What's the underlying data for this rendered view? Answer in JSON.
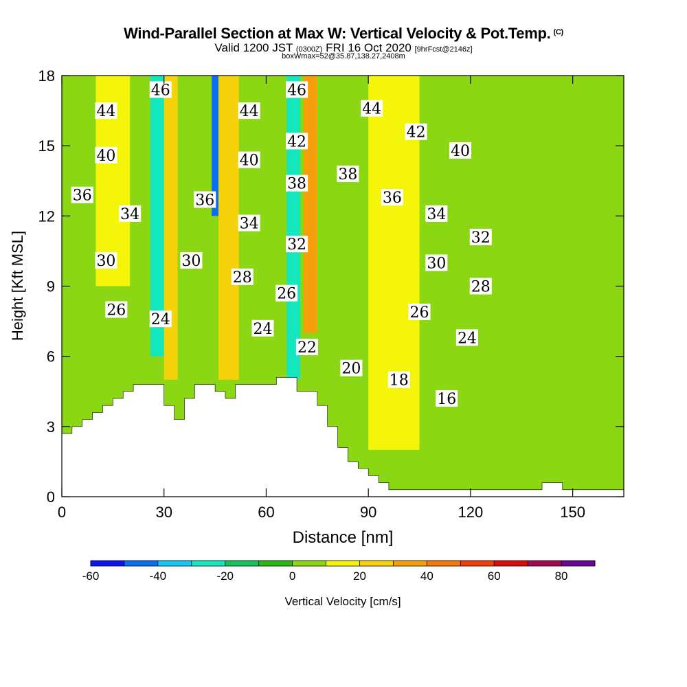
{
  "title": {
    "main": "Wind-Parallel Section at Max W: Vertical Velocity & Pot.Temp.",
    "copyright": "(C)",
    "valid_prefix": "Valid 1200 JST",
    "valid_utc": "(0300Z)",
    "valid_date": "FRI 16 Oct 2020",
    "forecast": "[9hrFcst@2146z]",
    "boxinfo": "boxWmax=52@35.87,138.27,2408m"
  },
  "chart_data": {
    "type": "heatmap",
    "xlabel": "Distance [nm]",
    "ylabel": "Height [Kft MSL]",
    "xlim": [
      0,
      165
    ],
    "ylim": [
      0,
      18
    ],
    "xticks": [
      0,
      30,
      60,
      90,
      120,
      150
    ],
    "yticks": [
      0,
      3,
      6,
      9,
      12,
      15,
      18
    ],
    "colorbar": {
      "label": "Vertical Velocity [cm/s]",
      "ticks": [
        -60,
        -40,
        -20,
        0,
        20,
        40,
        60,
        80
      ],
      "bins": [
        -60,
        -50,
        -40,
        -30,
        -20,
        -10,
        0,
        10,
        20,
        30,
        40,
        50,
        60,
        70,
        80,
        90
      ],
      "colors": [
        "#0a14f5",
        "#0a6ef0",
        "#14c8f5",
        "#14e6be",
        "#14c35a",
        "#2cb614",
        "#8cd714",
        "#f5f50a",
        "#f5d20a",
        "#f5a00a",
        "#f5780a",
        "#f03c0a",
        "#dc0a0a",
        "#a00a50",
        "#640a96"
      ]
    },
    "velocity_regions": [
      {
        "x": [
          10,
          20
        ],
        "y": [
          9,
          18
        ],
        "w_cms": 15
      },
      {
        "x": [
          26,
          30
        ],
        "y": [
          6,
          18
        ],
        "w_cms": -25
      },
      {
        "x": [
          30,
          34
        ],
        "y": [
          5,
          18
        ],
        "w_cms": 20
      },
      {
        "x": [
          44,
          46
        ],
        "y": [
          12,
          18
        ],
        "w_cms": -45
      },
      {
        "x": [
          46,
          52
        ],
        "y": [
          5,
          18
        ],
        "w_cms": 25
      },
      {
        "x": [
          66,
          70
        ],
        "y": [
          5,
          18
        ],
        "w_cms": -25
      },
      {
        "x": [
          71,
          75
        ],
        "y": [
          7,
          18
        ],
        "w_cms": 30
      },
      {
        "x": [
          90,
          105
        ],
        "y": [
          2,
          18
        ],
        "w_cms": 15
      },
      {
        "x": [
          110,
          160
        ],
        "y": [
          0,
          9
        ],
        "w_cms": 3
      }
    ],
    "terrain": {
      "distance_nm": [
        0,
        3,
        6,
        9,
        12,
        15,
        18,
        21,
        24,
        27,
        30,
        33,
        36,
        39,
        42,
        45,
        48,
        51,
        54,
        57,
        60,
        63,
        66,
        69,
        72,
        75,
        78,
        81,
        84,
        87,
        90,
        93,
        96,
        99,
        120,
        138,
        141,
        144,
        147,
        165
      ],
      "height_kft": [
        2.7,
        3.0,
        3.3,
        3.6,
        3.9,
        4.2,
        4.5,
        4.8,
        4.8,
        4.8,
        3.9,
        3.3,
        4.2,
        4.8,
        4.8,
        4.5,
        4.2,
        4.8,
        4.8,
        4.8,
        4.8,
        5.1,
        5.1,
        4.5,
        4.5,
        3.9,
        3.0,
        2.1,
        1.5,
        1.2,
        0.9,
        0.6,
        0.3,
        0.3,
        0.3,
        0.3,
        0.6,
        0.6,
        0.3,
        0.3
      ]
    },
    "theta_labels": [
      {
        "text": "46",
        "x": 29,
        "y": 17.4
      },
      {
        "text": "46",
        "x": 69,
        "y": 17.4
      },
      {
        "text": "44",
        "x": 13,
        "y": 16.5
      },
      {
        "text": "44",
        "x": 55,
        "y": 16.5
      },
      {
        "text": "44",
        "x": 91,
        "y": 16.6
      },
      {
        "text": "42",
        "x": 69,
        "y": 15.2
      },
      {
        "text": "42",
        "x": 104,
        "y": 15.6
      },
      {
        "text": "40",
        "x": 13,
        "y": 14.6
      },
      {
        "text": "40",
        "x": 55,
        "y": 14.4
      },
      {
        "text": "40",
        "x": 117,
        "y": 14.8
      },
      {
        "text": "38",
        "x": 69,
        "y": 13.4
      },
      {
        "text": "38",
        "x": 84,
        "y": 13.8
      },
      {
        "text": "36",
        "x": 6,
        "y": 12.9
      },
      {
        "text": "36",
        "x": 42,
        "y": 12.7
      },
      {
        "text": "36",
        "x": 97,
        "y": 12.8
      },
      {
        "text": "34",
        "x": 20,
        "y": 12.1
      },
      {
        "text": "34",
        "x": 55,
        "y": 11.7
      },
      {
        "text": "34",
        "x": 110,
        "y": 12.1
      },
      {
        "text": "32",
        "x": 69,
        "y": 10.8
      },
      {
        "text": "32",
        "x": 123,
        "y": 11.1
      },
      {
        "text": "30",
        "x": 13,
        "y": 10.1
      },
      {
        "text": "30",
        "x": 38,
        "y": 10.1
      },
      {
        "text": "30",
        "x": 110,
        "y": 10.0
      },
      {
        "text": "28",
        "x": 53,
        "y": 9.4
      },
      {
        "text": "28",
        "x": 123,
        "y": 9.0
      },
      {
        "text": "26",
        "x": 16,
        "y": 8.0
      },
      {
        "text": "26",
        "x": 66,
        "y": 8.7
      },
      {
        "text": "26",
        "x": 105,
        "y": 7.9
      },
      {
        "text": "24",
        "x": 29,
        "y": 7.6
      },
      {
        "text": "24",
        "x": 59,
        "y": 7.2
      },
      {
        "text": "24",
        "x": 119,
        "y": 6.8
      },
      {
        "text": "22",
        "x": 72,
        "y": 6.4
      },
      {
        "text": "20",
        "x": 85,
        "y": 5.5
      },
      {
        "text": "18",
        "x": 99,
        "y": 5.0
      },
      {
        "text": "16",
        "x": 113,
        "y": 4.2
      }
    ],
    "grid": false,
    "legend": "bottom colorbar"
  }
}
